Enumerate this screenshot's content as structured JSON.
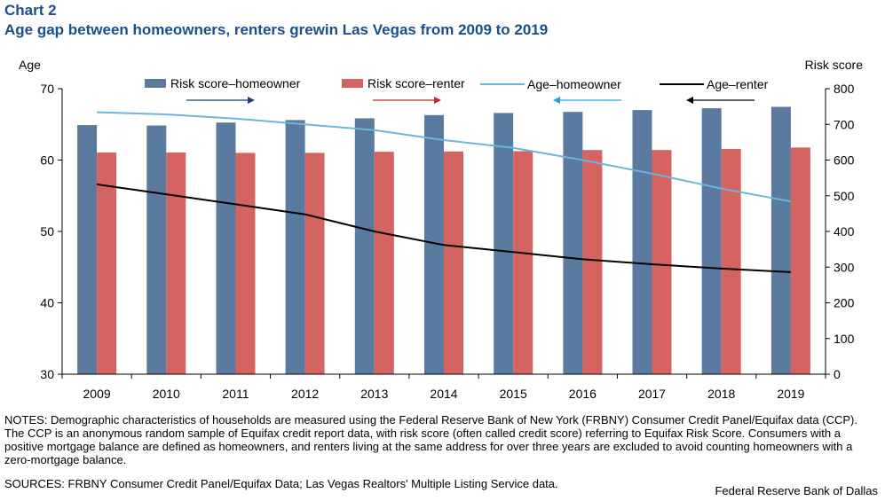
{
  "header": {
    "label": "Chart 2",
    "title": "Age gap between homeowners, renters grewin Las Vegas from 2009 to 2019"
  },
  "chart_data": {
    "type": "bar+line",
    "categories": [
      "2009",
      "2010",
      "2011",
      "2012",
      "2013",
      "2014",
      "2015",
      "2016",
      "2017",
      "2018",
      "2019"
    ],
    "left_axis": {
      "label": "Age",
      "range": [
        30,
        70
      ],
      "ticks": [
        30,
        40,
        50,
        60,
        70
      ]
    },
    "right_axis": {
      "label": "Risk score",
      "range": [
        0,
        800
      ],
      "ticks": [
        0,
        100,
        200,
        300,
        400,
        500,
        600,
        700,
        800
      ]
    },
    "grid": false,
    "legend_position": "top",
    "series": [
      {
        "name": "Risk score–homeowner",
        "kind": "bar",
        "axis": "right",
        "color": "#5b7aa0",
        "arrow": "right",
        "arrow_color": "#1f3a73",
        "values": [
          698,
          697,
          705,
          712,
          717,
          726,
          732,
          735,
          740,
          745,
          749
        ]
      },
      {
        "name": "Risk score–renter",
        "kind": "bar",
        "axis": "right",
        "color": "#d56460",
        "arrow": "right",
        "arrow_color": "#c0282d",
        "values": [
          621,
          621,
          620,
          620,
          623,
          624,
          625,
          628,
          628,
          631,
          635
        ]
      },
      {
        "name": "Age–homeowner",
        "kind": "line",
        "axis": "left",
        "color": "#6eb5dc",
        "arrow": "left",
        "arrow_color": "#29a3d9",
        "values": [
          66.7,
          66.4,
          65.8,
          65.0,
          64.2,
          62.8,
          61.7,
          60.0,
          58.1,
          56.0,
          54.2
        ]
      },
      {
        "name": "Age–renter",
        "kind": "line",
        "axis": "left",
        "color": "#000000",
        "arrow": "left",
        "arrow_color": "#000000",
        "values": [
          56.6,
          55.2,
          53.8,
          52.4,
          50.0,
          48.1,
          47.1,
          46.1,
          45.4,
          44.8,
          44.3
        ]
      }
    ]
  },
  "notes": "NOTES: Demographic characteristics of households are measured using the Federal Reserve Bank of New York (FRBNY) Consumer Credit Panel/Equifax data (CCP). The CCP is an anonymous random sample of Equifax credit report data, with risk score (often called credit score) referring to Equifax Risk Score. Consumers with a positive mortgage balance are defined as homeowners, and renters living at the same address for over three years are excluded to avoid counting homeowners with a zero-mortgage balance.",
  "sources": "SOURCES: FRBNY Consumer Credit Panel/Equifax Data; Las Vegas Realtors' Multiple  Listing Service data.",
  "credit": "Federal Reserve Bank of Dallas"
}
